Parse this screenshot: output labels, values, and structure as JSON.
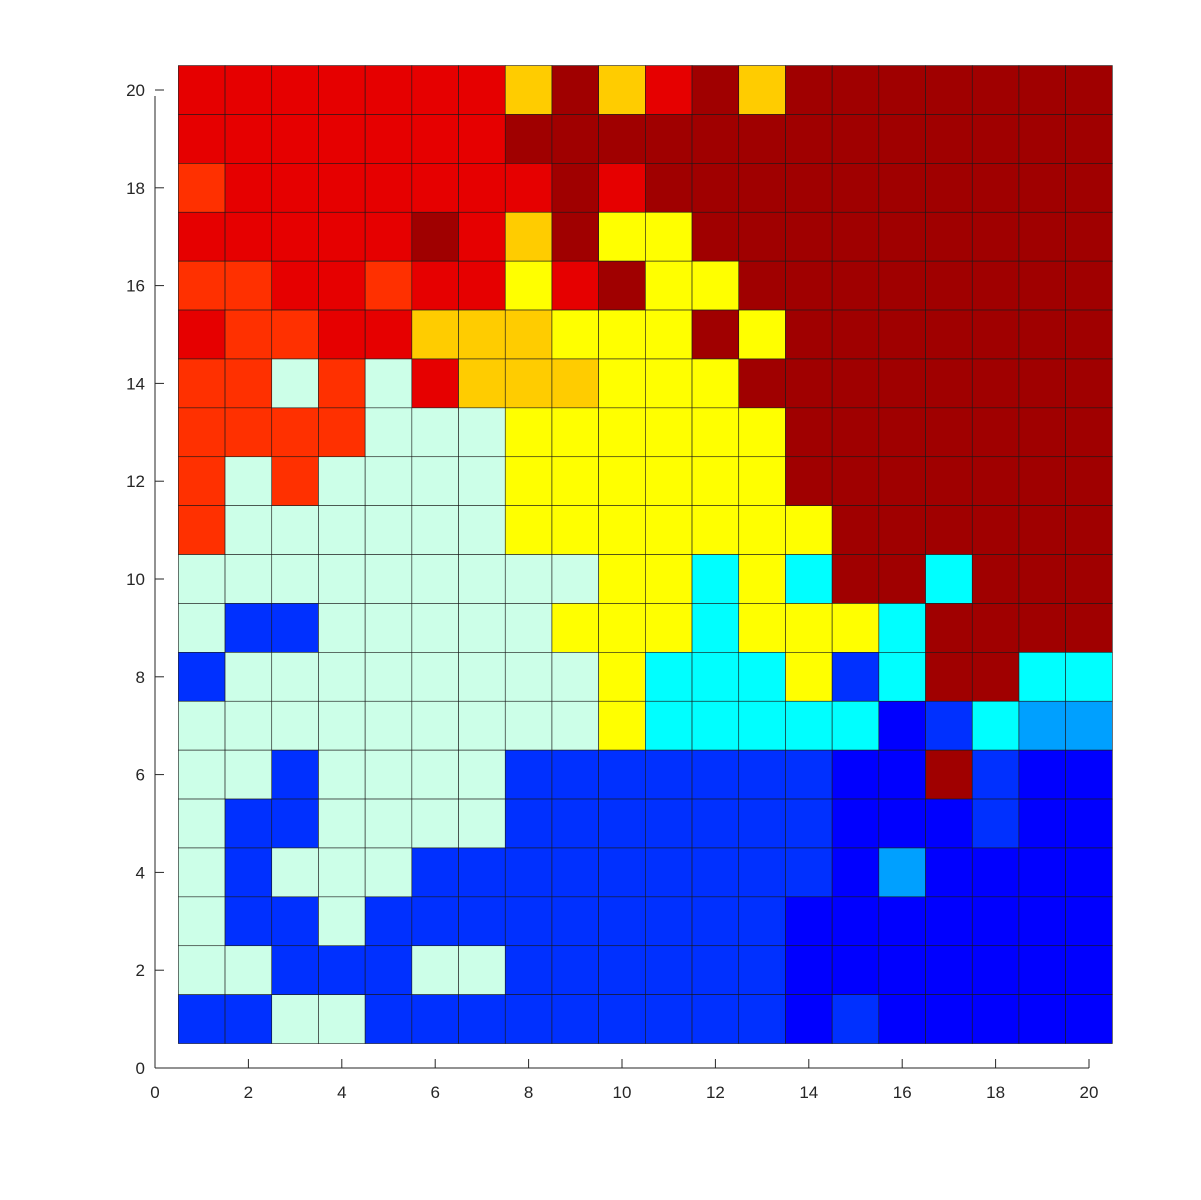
{
  "chart_data": {
    "type": "heatmap",
    "title": "",
    "xlabel": "",
    "ylabel": "",
    "xlim": [
      0,
      20.7
    ],
    "ylim": [
      0,
      20.7
    ],
    "xticks": [
      0,
      2,
      4,
      6,
      8,
      10,
      12,
      14,
      16,
      18,
      20
    ],
    "yticks": [
      0,
      2,
      4,
      6,
      8,
      10,
      12,
      14,
      16,
      18,
      20
    ],
    "grid": false,
    "legend": "none",
    "colors": {
      "A": "#0000ff",
      "B": "#0030ff",
      "C": "#00a0ff",
      "D": "#00ffff",
      "E": "#ccffe8",
      "F": "#ffff00",
      "G": "#ffcc00",
      "H": "#ff3000",
      "I": "#e60000",
      "J": "#a00000"
    },
    "x": [
      1,
      2,
      3,
      4,
      5,
      6,
      7,
      8,
      9,
      10,
      11,
      12,
      13,
      14,
      15,
      16,
      17,
      18,
      19,
      20
    ],
    "y_top_to_bottom": [
      20,
      19,
      18,
      17,
      16,
      15,
      14,
      13,
      12,
      11,
      10,
      9,
      8,
      7,
      6,
      5,
      4,
      3,
      2,
      1
    ],
    "rows": [
      "IIIIIIIGJGIJGJJJJJJJ",
      "IIIIIIIJJJJJJJJJJJJJ",
      "HIIIIIIIJIJJJJJJJJJJ",
      "IIIIIJIGJFFJJJJJJJJJ",
      "HHIIHIIFIJFFJJJJJJJJ",
      "IHHIIGGGFFFJFJJJJJJJ",
      "HHEHEIGGGFFFJJJJJJJJ",
      "HHHHEEEFFFFFFJJJJJJJ",
      "HEHEEEEFFFFFFJJJJJJJ",
      "HEEEEEEFFFFFFFJJJJJJ",
      "EEEEEEEEEFFDFDJJDJJJ",
      "EBBEEEEEFFFDFFFDJJJJ",
      "BEEEEEEEEFDDDFBDJJDD",
      "EEEEEEEEEFDDDDDABDCC",
      "EEBEEEEBBBBBBBAAJBAA",
      "EBBEEEEBBBBBBBAAABAA",
      "EBEEEBBBBBBBBBACAAAA",
      "EBBEBBBBBBBBBAAAAAAA",
      "EEBBBEEBBBBBBAAAAAAA",
      "BBEEBBBBBBBBBABAAAAA"
    ]
  }
}
